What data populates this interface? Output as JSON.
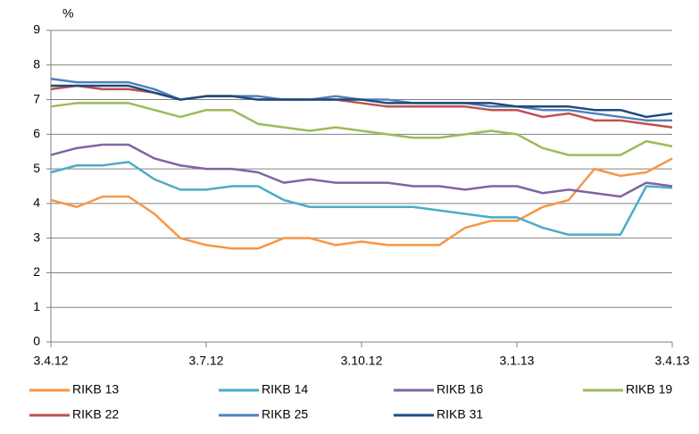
{
  "chart_data": {
    "type": "line",
    "y_label": "%",
    "categories": [
      "3.4.12",
      null,
      null,
      null,
      null,
      null,
      "3.7.12",
      null,
      null,
      null,
      null,
      null,
      "3.10.12",
      null,
      null,
      null,
      null,
      null,
      "3.1.13",
      null,
      null,
      null,
      null,
      null,
      "3.4.13"
    ],
    "series": [
      {
        "name": "RIKB 13",
        "color": "#f79646",
        "values": [
          4.1,
          3.9,
          4.2,
          4.2,
          3.7,
          3.0,
          2.8,
          2.7,
          2.7,
          3.0,
          3.0,
          2.8,
          2.9,
          2.8,
          2.8,
          2.8,
          3.3,
          3.5,
          3.5,
          3.9,
          4.1,
          5.0,
          4.8,
          4.9,
          5.3
        ]
      },
      {
        "name": "RIKB 14",
        "color": "#4bacc6",
        "values": [
          4.9,
          5.1,
          5.1,
          5.2,
          4.7,
          4.4,
          4.4,
          4.5,
          4.5,
          4.1,
          3.9,
          3.9,
          3.9,
          3.9,
          3.9,
          3.8,
          3.7,
          3.6,
          3.6,
          3.3,
          3.1,
          3.1,
          3.1,
          4.5,
          4.45
        ]
      },
      {
        "name": "RIKB 16",
        "color": "#8064a2",
        "values": [
          5.4,
          5.6,
          5.7,
          5.7,
          5.3,
          5.1,
          5.0,
          5.0,
          4.9,
          4.6,
          4.7,
          4.6,
          4.6,
          4.6,
          4.5,
          4.5,
          4.4,
          4.5,
          4.5,
          4.3,
          4.4,
          4.3,
          4.2,
          4.6,
          4.5
        ]
      },
      {
        "name": "RIKB 19",
        "color": "#9bbb59",
        "values": [
          6.8,
          6.9,
          6.9,
          6.9,
          6.7,
          6.5,
          6.7,
          6.7,
          6.3,
          6.2,
          6.1,
          6.2,
          6.1,
          6.0,
          5.9,
          5.9,
          6.0,
          6.1,
          6.0,
          5.6,
          5.4,
          5.4,
          5.4,
          5.8,
          5.65
        ]
      },
      {
        "name": "RIKB 22",
        "color": "#c0504d",
        "values": [
          7.3,
          7.4,
          7.3,
          7.3,
          7.2,
          7.0,
          7.1,
          7.1,
          7.0,
          7.0,
          7.0,
          7.0,
          6.9,
          6.8,
          6.8,
          6.8,
          6.8,
          6.7,
          6.7,
          6.5,
          6.6,
          6.4,
          6.4,
          6.3,
          6.2
        ]
      },
      {
        "name": "RIKB 25",
        "color": "#4f81bd",
        "values": [
          7.6,
          7.5,
          7.5,
          7.5,
          7.3,
          7.0,
          7.1,
          7.1,
          7.1,
          7.0,
          7.0,
          7.1,
          7.0,
          7.0,
          6.9,
          6.9,
          6.9,
          6.8,
          6.8,
          6.7,
          6.7,
          6.6,
          6.5,
          6.4,
          6.4
        ]
      },
      {
        "name": "RIKB 31",
        "color": "#1f497d",
        "values": [
          7.4,
          7.4,
          7.4,
          7.4,
          7.2,
          7.0,
          7.1,
          7.1,
          7.0,
          7.0,
          7.0,
          7.0,
          7.0,
          6.9,
          6.9,
          6.9,
          6.9,
          6.9,
          6.8,
          6.8,
          6.8,
          6.7,
          6.7,
          6.5,
          6.6
        ]
      }
    ],
    "ylim": [
      0,
      9
    ],
    "yticks": [
      0,
      1,
      2,
      3,
      4,
      5,
      6,
      7,
      8,
      9
    ],
    "grid": true
  }
}
